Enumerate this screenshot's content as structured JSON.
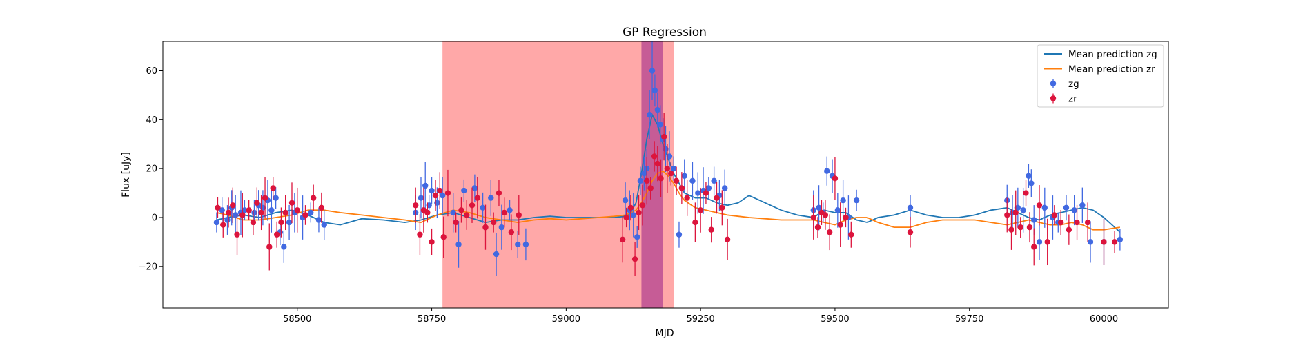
{
  "chart_data": {
    "type": "scatter",
    "title": "GP Regression",
    "xlabel": "MJD",
    "ylabel": "Flux [uJy]",
    "xlim": [
      58250,
      60120
    ],
    "ylim": [
      -37,
      72
    ],
    "xticks": [
      58500,
      58750,
      59000,
      59250,
      59500,
      59750,
      60000
    ],
    "xtick_labels": [
      "58500",
      "58750",
      "59000",
      "59250",
      "59500",
      "59750",
      "60000"
    ],
    "yticks": [
      -20,
      0,
      20,
      40,
      60
    ],
    "ytick_labels": [
      "−20",
      "0",
      "20",
      "40",
      "60"
    ],
    "grid": false,
    "legend": {
      "position": "top-right",
      "entries": [
        {
          "label": "Mean prediction zg",
          "kind": "line",
          "color": "#1f77b4"
        },
        {
          "label": "Mean prediction zr",
          "kind": "line",
          "color": "#ff7f0e"
        },
        {
          "label": "zg",
          "kind": "marker",
          "color": "#4169e1"
        },
        {
          "label": "zr",
          "kind": "marker",
          "color": "#dc143c"
        }
      ]
    },
    "shaded_regions": [
      {
        "x0": 58770,
        "x1": 59200,
        "color": "#ff0000",
        "opacity": 0.34
      },
      {
        "x0": 59140,
        "x1": 59180,
        "color": "#800080",
        "opacity": 0.45
      }
    ],
    "lines": [
      {
        "name": "Mean prediction zg",
        "color": "#1f77b4",
        "x": [
          58350,
          58370,
          58400,
          58430,
          58460,
          58490,
          58520,
          58550,
          58580,
          58620,
          58660,
          58700,
          58730,
          58760,
          58790,
          58820,
          58850,
          58880,
          58910,
          58940,
          58970,
          59000,
          59030,
          59060,
          59090,
          59110,
          59120,
          59130,
          59140,
          59150,
          59160,
          59170,
          59180,
          59190,
          59200,
          59210,
          59220,
          59240,
          59260,
          59280,
          59300,
          59320,
          59340,
          59370,
          59400,
          59430,
          59460,
          59480,
          59500,
          59520,
          59540,
          59560,
          59580,
          59610,
          59640,
          59670,
          59700,
          59730,
          59760,
          59790,
          59820,
          59840,
          59860,
          59880,
          59900,
          59920,
          59940,
          59960,
          59980,
          60000,
          60030
        ],
        "y": [
          -1,
          0,
          1,
          0,
          2,
          3,
          1,
          -2,
          -3,
          -0.5,
          -1,
          -2,
          -1,
          1,
          2,
          0,
          -2,
          -1,
          -1,
          0,
          0.5,
          0,
          0,
          0,
          0,
          0.5,
          2,
          6,
          18,
          32,
          42,
          38,
          30,
          24,
          18,
          14,
          10,
          8,
          8,
          6,
          5,
          6,
          9,
          6,
          3,
          1,
          0,
          3,
          2,
          2,
          -1,
          -2,
          0,
          1,
          3,
          1,
          0,
          0,
          1,
          3,
          4,
          2,
          0,
          -1,
          1,
          2,
          3,
          4,
          3,
          0,
          -6
        ]
      },
      {
        "name": "Mean prediction zr",
        "color": "#ff7f0e",
        "x": [
          58350,
          58370,
          58400,
          58430,
          58460,
          58490,
          58520,
          58550,
          58580,
          58620,
          58660,
          58700,
          58730,
          58760,
          58790,
          58820,
          58850,
          58880,
          58910,
          58940,
          58970,
          59000,
          59030,
          59060,
          59090,
          59110,
          59120,
          59130,
          59140,
          59150,
          59160,
          59170,
          59180,
          59190,
          59200,
          59210,
          59220,
          59240,
          59260,
          59280,
          59300,
          59320,
          59340,
          59370,
          59400,
          59430,
          59460,
          59480,
          59500,
          59520,
          59540,
          59560,
          59580,
          59610,
          59640,
          59670,
          59700,
          59730,
          59760,
          59790,
          59820,
          59840,
          59860,
          59880,
          59900,
          59920,
          59940,
          59960,
          59980,
          60000,
          60030
        ],
        "y": [
          2,
          1,
          -1,
          -1,
          0,
          1,
          3,
          3,
          2,
          1,
          0,
          -1,
          -2,
          1,
          3,
          2,
          0,
          -1,
          -2,
          -1,
          -0.5,
          -1,
          -0.5,
          0,
          0.5,
          1,
          2,
          3,
          6,
          10,
          15,
          18,
          19,
          17,
          14,
          10,
          7,
          4,
          3,
          2,
          1,
          0.5,
          0,
          -0.5,
          -1,
          -1,
          -1,
          -2,
          -3,
          -1,
          0,
          0,
          -2,
          -4,
          -4,
          -2,
          -1,
          -1,
          -1,
          -2,
          -3,
          -2,
          -1,
          -2,
          -3,
          -3,
          -2,
          -3,
          -5,
          -5,
          -4
        ]
      }
    ],
    "series": [
      {
        "name": "zg",
        "color": "#4169e1",
        "x": [
          58350,
          58360,
          58370,
          58378,
          58385,
          58395,
          58402,
          58420,
          58428,
          58436,
          58445,
          58452,
          58460,
          58468,
          58475,
          58485,
          58495,
          58510,
          58525,
          58540,
          58550,
          58720,
          58730,
          58738,
          58745,
          58750,
          58760,
          58770,
          58790,
          58800,
          58810,
          58830,
          58845,
          58860,
          58870,
          58880,
          58895,
          58910,
          58925,
          59110,
          59118,
          59125,
          59132,
          59138,
          59145,
          59150,
          59155,
          59160,
          59165,
          59170,
          59175,
          59180,
          59185,
          59192,
          59200,
          59210,
          59220,
          59235,
          59245,
          59255,
          59265,
          59275,
          59285,
          59295,
          59460,
          59470,
          59478,
          59485,
          59495,
          59505,
          59515,
          59525,
          59540,
          59640,
          59820,
          59830,
          59840,
          59850,
          59860,
          59865,
          59870,
          59880,
          59890,
          59905,
          59915,
          59930,
          59945,
          59960,
          59975,
          60000,
          60030
        ],
        "y": [
          -2,
          3,
          -1,
          4,
          1,
          2,
          3,
          2,
          5,
          4,
          7,
          3,
          8,
          -6,
          -12,
          -2,
          2,
          0,
          2,
          -1,
          -3,
          2,
          8,
          13,
          5,
          11,
          6,
          9,
          2,
          -11,
          11,
          12,
          4,
          8,
          -15,
          -4,
          3,
          -11,
          -11,
          7,
          3,
          1,
          -8,
          15,
          18,
          20,
          42,
          60,
          52,
          44,
          38,
          32,
          28,
          25,
          20,
          -7,
          17,
          15,
          10,
          11,
          12,
          15,
          9,
          12,
          3,
          4,
          2,
          19,
          17,
          3,
          7,
          0,
          7,
          4,
          7,
          2,
          4,
          3,
          17,
          14,
          -1,
          -10,
          4,
          0,
          -2,
          4,
          3,
          5,
          -10,
          -10,
          -9
        ]
      },
      {
        "name": "zr",
        "color": "#dc143c",
        "x": [
          58352,
          58362,
          58372,
          58380,
          58388,
          58398,
          58410,
          58418,
          58425,
          58433,
          58440,
          58448,
          58455,
          58462,
          58470,
          58478,
          58490,
          58500,
          58515,
          58530,
          58545,
          58720,
          58728,
          58735,
          58742,
          58750,
          58757,
          58765,
          58772,
          58780,
          58795,
          58805,
          58815,
          58825,
          58835,
          58850,
          58865,
          58875,
          58885,
          58898,
          58912,
          59105,
          59112,
          59120,
          59128,
          59135,
          59142,
          59150,
          59157,
          59164,
          59170,
          59176,
          59182,
          59188,
          59195,
          59205,
          59215,
          59225,
          59240,
          59250,
          59260,
          59270,
          59280,
          59290,
          59300,
          59460,
          59468,
          59475,
          59482,
          59490,
          59500,
          59510,
          59520,
          59530,
          59640,
          59820,
          59828,
          59836,
          59845,
          59855,
          59862,
          59870,
          59880,
          59895,
          59908,
          59920,
          59935,
          59950,
          59970,
          60000,
          60020
        ],
        "y": [
          4,
          -3,
          2,
          5,
          -7,
          1,
          3,
          -2,
          6,
          2,
          8,
          -12,
          12,
          -7,
          -2,
          2,
          6,
          3,
          1,
          8,
          4,
          5,
          -7,
          3,
          2,
          -10,
          9,
          11,
          -8,
          10,
          -2,
          3,
          1,
          5,
          8,
          -4,
          -2,
          10,
          2,
          -6,
          1,
          -9,
          0,
          4,
          -17,
          2,
          5,
          15,
          12,
          25,
          22,
          16,
          33,
          20,
          18,
          15,
          12,
          8,
          -2,
          3,
          10,
          -5,
          8,
          4,
          -9,
          0,
          -4,
          2,
          1,
          -6,
          16,
          -3,
          0,
          -7,
          -6,
          1,
          -5,
          2,
          -4,
          10,
          -4,
          -12,
          5,
          -10,
          1,
          -2,
          -5,
          -2,
          -2,
          -10,
          -10
        ]
      }
    ]
  }
}
